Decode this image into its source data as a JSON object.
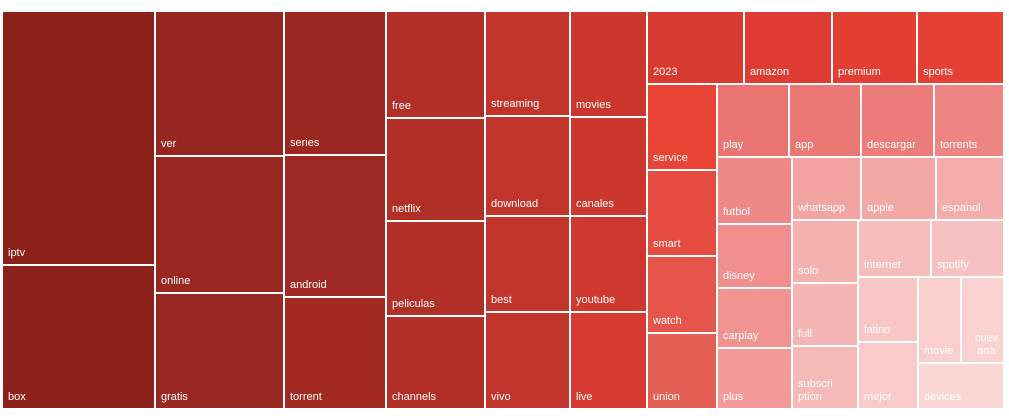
{
  "chart_data": {
    "type": "treemap",
    "title": "",
    "items": [
      {
        "label": "iptv",
        "value": 100
      },
      {
        "label": "box",
        "value": 89
      },
      {
        "label": "ver",
        "value": 61
      },
      {
        "label": "online",
        "value": 58
      },
      {
        "label": "gratis",
        "value": 54
      },
      {
        "label": "series",
        "value": 57
      },
      {
        "label": "android",
        "value": 55
      },
      {
        "label": "torrent",
        "value": 45
      },
      {
        "label": "free",
        "value": 39
      },
      {
        "label": "netflix",
        "value": 38
      },
      {
        "label": "peliculas",
        "value": 36
      },
      {
        "label": "channels",
        "value": 34
      },
      {
        "label": "streaming",
        "value": 34
      },
      {
        "label": "download",
        "value": 34
      },
      {
        "label": "best",
        "value": 34
      },
      {
        "label": "vivo",
        "value": 34
      },
      {
        "label": "movies",
        "value": 27
      },
      {
        "label": "canales",
        "value": 27
      },
      {
        "label": "youtube",
        "value": 26
      },
      {
        "label": "live",
        "value": 26
      },
      {
        "label": "2023",
        "value": 24
      },
      {
        "label": "amazon",
        "value": 22
      },
      {
        "label": "premium",
        "value": 21
      },
      {
        "label": "sports",
        "value": 21
      },
      {
        "label": "service",
        "value": 22
      },
      {
        "label": "smart",
        "value": 22
      },
      {
        "label": "watch",
        "value": 20
      },
      {
        "label": "union",
        "value": 19
      },
      {
        "label": "play",
        "value": 18
      },
      {
        "label": "app",
        "value": 18
      },
      {
        "label": "descargar",
        "value": 18
      },
      {
        "label": "torrents",
        "value": 17
      },
      {
        "label": "futbol",
        "value": 16
      },
      {
        "label": "disney",
        "value": 15
      },
      {
        "label": "carplay",
        "value": 15
      },
      {
        "label": "plus",
        "value": 14
      },
      {
        "label": "whatsapp",
        "value": 15
      },
      {
        "label": "apple",
        "value": 14
      },
      {
        "label": "espanol",
        "value": 14
      },
      {
        "label": "solo",
        "value": 13
      },
      {
        "label": "full",
        "value": 13
      },
      {
        "label": "subscription",
        "value": 13
      },
      {
        "label": "internet",
        "value": 12
      },
      {
        "label": "spotify",
        "value": 12
      },
      {
        "label": "latino",
        "value": 12
      },
      {
        "label": "mejor",
        "value": 11
      },
      {
        "label": "movie",
        "value": 9
      },
      {
        "label": "cuevana",
        "value": 9
      },
      {
        "label": "devices",
        "value": 9
      }
    ]
  }
}
